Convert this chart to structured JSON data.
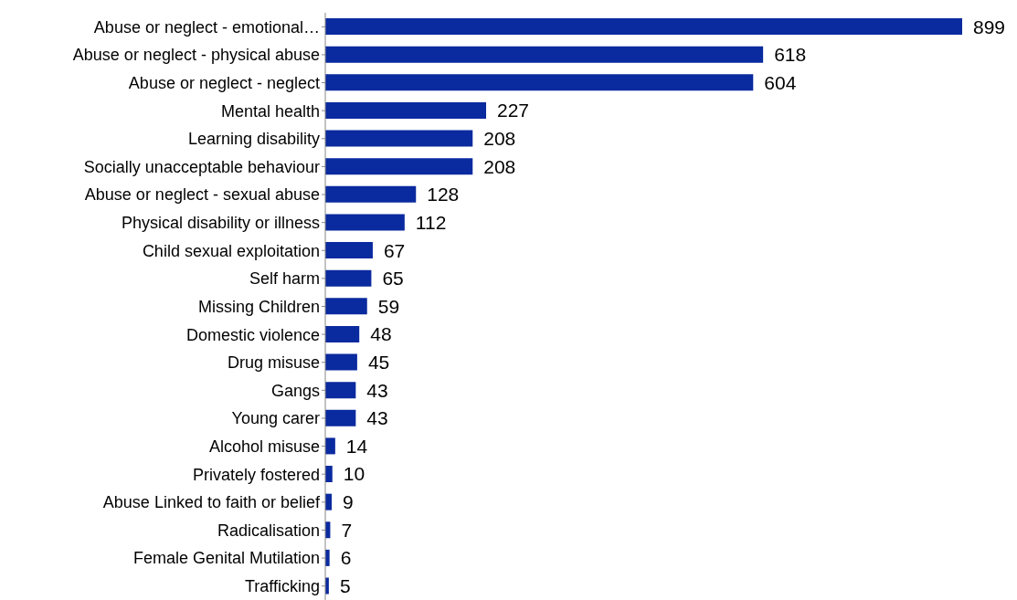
{
  "chart_data": {
    "type": "bar",
    "orientation": "horizontal",
    "data_labels": true,
    "color": "#0a2a9f",
    "categories": [
      "Abuse or neglect - emotional…",
      "Abuse or neglect - physical abuse",
      "Abuse or neglect - neglect",
      "Mental health",
      "Learning disability",
      "Socially unacceptable behaviour",
      "Abuse or neglect - sexual abuse",
      "Physical disability or illness",
      "Child sexual exploitation",
      "Self harm",
      "Missing Children",
      "Domestic violence",
      "Drug misuse",
      "Gangs",
      "Young carer",
      "Alcohol misuse",
      "Privately fostered",
      "Abuse Linked to faith or belief",
      "Radicalisation",
      "Female Genital Mutilation",
      "Trafficking"
    ],
    "values": [
      899,
      618,
      604,
      227,
      208,
      208,
      128,
      112,
      67,
      65,
      59,
      48,
      45,
      43,
      43,
      14,
      10,
      9,
      7,
      6,
      5
    ]
  }
}
